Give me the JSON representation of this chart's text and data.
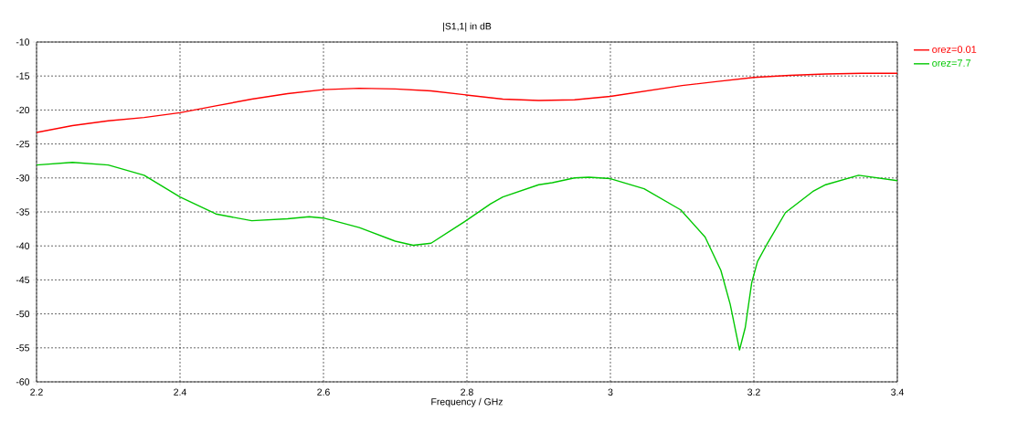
{
  "chart_data": {
    "type": "line",
    "title": "|S1,1| in dB",
    "xlabel": "Frequency / GHz",
    "xlim": [
      2.2,
      3.4
    ],
    "xticks": [
      2.2,
      2.4,
      2.6,
      2.8,
      3,
      3.2,
      3.4
    ],
    "ylim": [
      -60,
      -10
    ],
    "yticks": [
      -60,
      -55,
      -50,
      -45,
      -40,
      -35,
      -30,
      -25,
      -20,
      -15,
      -10
    ],
    "grid": true,
    "legend": "top right",
    "marker": "none",
    "line_style": "solid",
    "series": [
      {
        "name": "orez=0.01",
        "color": "#ff0000",
        "x": [
          2.2,
          2.25,
          2.3,
          2.35,
          2.4,
          2.45,
          2.5,
          2.55,
          2.6,
          2.65,
          2.7,
          2.75,
          2.8,
          2.85,
          2.9,
          2.95,
          3.0,
          3.05,
          3.1,
          3.15,
          3.2,
          3.25,
          3.3,
          3.35,
          3.4
        ],
        "values": [
          -23.3,
          -22.3,
          -21.6,
          -21.1,
          -20.4,
          -19.4,
          -18.4,
          -17.6,
          -17.0,
          -16.8,
          -16.9,
          -17.2,
          -17.8,
          -18.4,
          -18.6,
          -18.5,
          -18.0,
          -17.2,
          -16.4,
          -15.8,
          -15.2,
          -14.9,
          -14.7,
          -14.6,
          -14.6
        ]
      },
      {
        "name": "orez=7.7",
        "color": "#00c800",
        "x": [
          2.2,
          2.25,
          2.3,
          2.35,
          2.4,
          2.45,
          2.5,
          2.55,
          2.58,
          2.6,
          2.65,
          2.7,
          2.725,
          2.75,
          2.8,
          2.833,
          2.85,
          2.9,
          2.919,
          2.95,
          2.97,
          3.0,
          3.047,
          3.098,
          3.132,
          3.154,
          3.167,
          3.18,
          3.188,
          3.197,
          3.205,
          3.218,
          3.244,
          3.282,
          3.3,
          3.346,
          3.4
        ],
        "values": [
          -28.1,
          -27.7,
          -28.1,
          -29.6,
          -32.8,
          -35.3,
          -36.3,
          -36.0,
          -35.7,
          -35.9,
          -37.3,
          -39.3,
          -39.9,
          -39.6,
          -36.2,
          -33.8,
          -32.8,
          -31.0,
          -30.7,
          -30.0,
          -29.9,
          -30.1,
          -31.6,
          -34.7,
          -38.7,
          -43.6,
          -48.6,
          -55.3,
          -52.0,
          -45.4,
          -42.3,
          -39.8,
          -35.1,
          -32.0,
          -31.0,
          -29.6,
          -30.4
        ]
      }
    ]
  }
}
